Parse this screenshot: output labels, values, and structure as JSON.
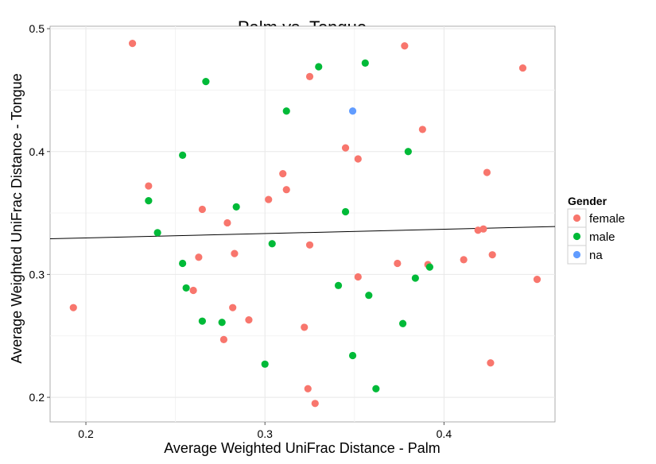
{
  "chart_data": {
    "type": "scatter",
    "title": "Palm vs. Tongue",
    "xlabel": "Average Weighted UniFrac Distance - Palm",
    "ylabel": "Average Weighted UniFrac Distance - Tongue",
    "xlim": [
      0.18,
      0.462
    ],
    "ylim": [
      0.18,
      0.502
    ],
    "xticks": [
      0.2,
      0.3,
      0.4
    ],
    "xtick_labels": [
      "0.2",
      "0.3",
      "0.4"
    ],
    "yticks": [
      0.2,
      0.3,
      0.4,
      0.5
    ],
    "ytick_labels": [
      "0.2",
      "0.3",
      "0.4",
      "0.5"
    ],
    "grid": true,
    "legend": {
      "title": "Gender",
      "position": "right",
      "entries": [
        {
          "label": "female",
          "color": "#f8766d"
        },
        {
          "label": "male",
          "color": "#00ba38"
        },
        {
          "label": "na",
          "color": "#619cff"
        }
      ]
    },
    "trend_line": {
      "x": [
        0.18,
        0.462
      ],
      "y": [
        0.329,
        0.339
      ],
      "color": "#000000"
    },
    "series": [
      {
        "name": "female",
        "color": "#f8766d",
        "points": [
          [
            0.193,
            0.273
          ],
          [
            0.226,
            0.488
          ],
          [
            0.235,
            0.372
          ],
          [
            0.26,
            0.287
          ],
          [
            0.263,
            0.314
          ],
          [
            0.265,
            0.353
          ],
          [
            0.277,
            0.247
          ],
          [
            0.279,
            0.342
          ],
          [
            0.282,
            0.273
          ],
          [
            0.283,
            0.317
          ],
          [
            0.291,
            0.263
          ],
          [
            0.302,
            0.361
          ],
          [
            0.31,
            0.382
          ],
          [
            0.312,
            0.369
          ],
          [
            0.322,
            0.257
          ],
          [
            0.324,
            0.207
          ],
          [
            0.325,
            0.461
          ],
          [
            0.325,
            0.324
          ],
          [
            0.328,
            0.195
          ],
          [
            0.345,
            0.403
          ],
          [
            0.352,
            0.394
          ],
          [
            0.352,
            0.298
          ],
          [
            0.374,
            0.309
          ],
          [
            0.378,
            0.486
          ],
          [
            0.388,
            0.418
          ],
          [
            0.391,
            0.308
          ],
          [
            0.411,
            0.312
          ],
          [
            0.419,
            0.336
          ],
          [
            0.422,
            0.337
          ],
          [
            0.424,
            0.383
          ],
          [
            0.426,
            0.228
          ],
          [
            0.427,
            0.316
          ],
          [
            0.444,
            0.468
          ],
          [
            0.452,
            0.296
          ]
        ]
      },
      {
        "name": "male",
        "color": "#00ba38",
        "points": [
          [
            0.235,
            0.36
          ],
          [
            0.24,
            0.334
          ],
          [
            0.254,
            0.309
          ],
          [
            0.254,
            0.397
          ],
          [
            0.256,
            0.289
          ],
          [
            0.265,
            0.262
          ],
          [
            0.267,
            0.457
          ],
          [
            0.276,
            0.261
          ],
          [
            0.284,
            0.355
          ],
          [
            0.3,
            0.227
          ],
          [
            0.304,
            0.325
          ],
          [
            0.312,
            0.433
          ],
          [
            0.33,
            0.469
          ],
          [
            0.341,
            0.291
          ],
          [
            0.345,
            0.351
          ],
          [
            0.349,
            0.234
          ],
          [
            0.356,
            0.472
          ],
          [
            0.358,
            0.283
          ],
          [
            0.362,
            0.207
          ],
          [
            0.377,
            0.26
          ],
          [
            0.38,
            0.4
          ],
          [
            0.384,
            0.297
          ],
          [
            0.392,
            0.306
          ]
        ]
      },
      {
        "name": "na",
        "color": "#619cff",
        "points": [
          [
            0.349,
            0.433
          ]
        ]
      }
    ]
  }
}
